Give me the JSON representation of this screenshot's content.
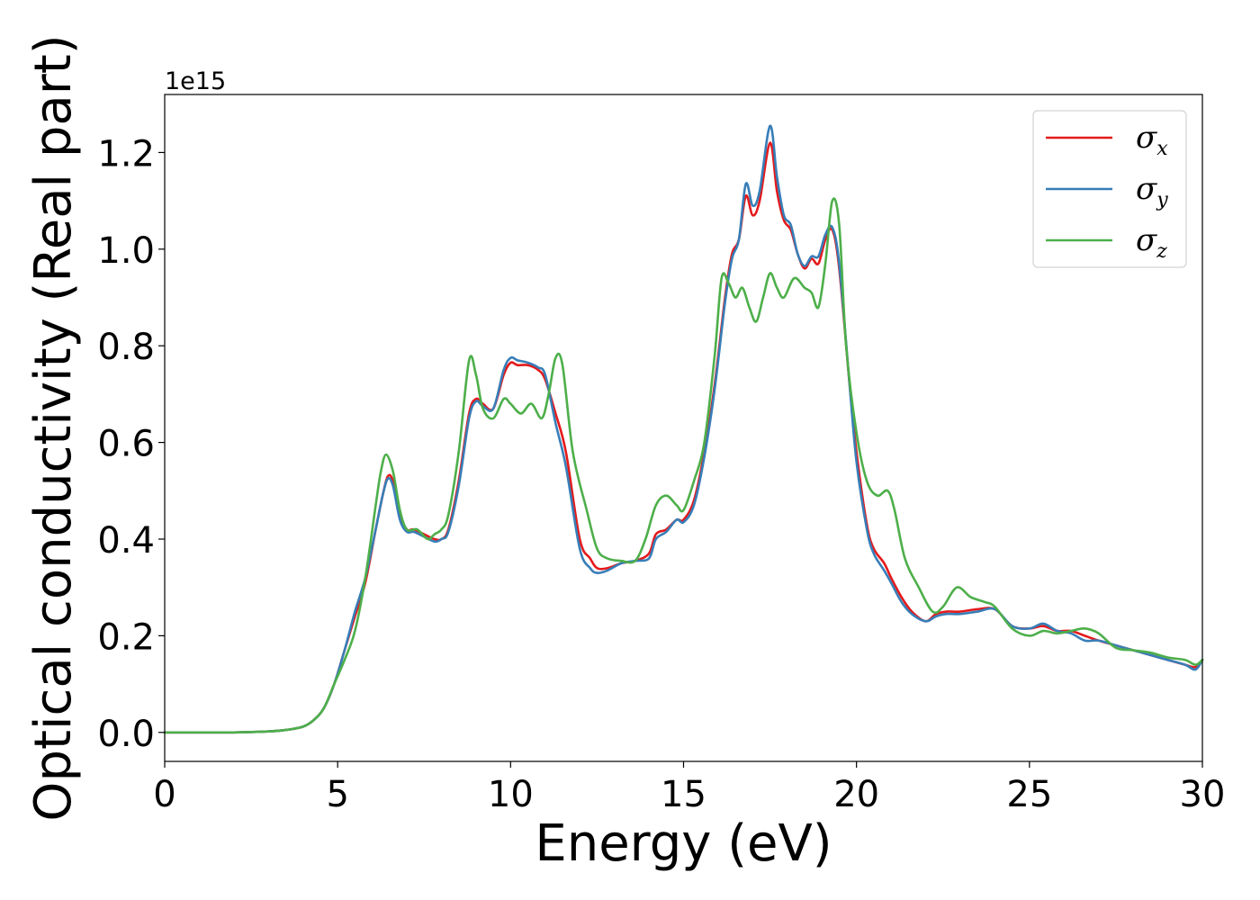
{
  "chart_data": {
    "type": "line",
    "title": "",
    "xlabel": "Energy (eV)",
    "ylabel": "Optical conductivity (Real part)",
    "y_offset_label": "1e15",
    "xlim": [
      0,
      30
    ],
    "ylim": [
      -0.06,
      1.32
    ],
    "xticks": [
      0,
      5,
      10,
      15,
      20,
      25,
      30
    ],
    "yticks": [
      0.0,
      0.2,
      0.4,
      0.6,
      0.8,
      1.0,
      1.2
    ],
    "xtick_labels": [
      "0",
      "5",
      "10",
      "15",
      "20",
      "25",
      "30"
    ],
    "ytick_labels": [
      "0.0",
      "0.2",
      "0.4",
      "0.6",
      "0.8",
      "1.0",
      "1.2"
    ],
    "grid": false,
    "legend_position": "top-right",
    "series": [
      {
        "name": "σx",
        "legend_symbol": "σ",
        "legend_subscript": "x",
        "color": "#e41a1c",
        "x": [
          0,
          1,
          2,
          3,
          3.5,
          4,
          4.3,
          4.6,
          4.9,
          5.2,
          5.5,
          5.8,
          6.1,
          6.3,
          6.45,
          6.6,
          6.8,
          7.0,
          7.2,
          7.5,
          7.8,
          8.0,
          8.2,
          8.5,
          8.8,
          9.0,
          9.2,
          9.5,
          9.8,
          10.0,
          10.2,
          10.5,
          10.8,
          11.0,
          11.3,
          11.6,
          12.0,
          12.3,
          12.5,
          12.8,
          13.2,
          13.6,
          14.0,
          14.2,
          14.5,
          14.8,
          15.0,
          15.3,
          15.6,
          15.9,
          16.2,
          16.4,
          16.6,
          16.8,
          17.0,
          17.2,
          17.5,
          17.7,
          17.9,
          18.1,
          18.3,
          18.5,
          18.7,
          18.9,
          19.1,
          19.3,
          19.5,
          19.8,
          20.0,
          20.3,
          20.5,
          20.8,
          21.0,
          21.3,
          21.6,
          22.0,
          22.3,
          22.6,
          23.0,
          23.5,
          24.0,
          24.5,
          25.0,
          25.4,
          25.8,
          26.2,
          26.6,
          27.0,
          27.5,
          28.0,
          28.5,
          29.0,
          29.5,
          29.8,
          30.0
        ],
        "y": [
          0.0,
          0.0,
          0.0,
          0.002,
          0.005,
          0.012,
          0.025,
          0.05,
          0.1,
          0.17,
          0.24,
          0.31,
          0.42,
          0.49,
          0.53,
          0.52,
          0.45,
          0.42,
          0.42,
          0.41,
          0.4,
          0.4,
          0.42,
          0.52,
          0.66,
          0.69,
          0.68,
          0.67,
          0.74,
          0.765,
          0.76,
          0.76,
          0.75,
          0.73,
          0.66,
          0.58,
          0.4,
          0.36,
          0.34,
          0.34,
          0.35,
          0.355,
          0.37,
          0.41,
          0.42,
          0.44,
          0.44,
          0.48,
          0.58,
          0.72,
          0.9,
          0.99,
          1.02,
          1.11,
          1.07,
          1.1,
          1.22,
          1.12,
          1.06,
          1.04,
          0.99,
          0.96,
          0.98,
          0.97,
          1.02,
          1.04,
          0.96,
          0.72,
          0.58,
          0.43,
          0.38,
          0.35,
          0.32,
          0.28,
          0.25,
          0.23,
          0.245,
          0.25,
          0.25,
          0.255,
          0.255,
          0.22,
          0.215,
          0.22,
          0.21,
          0.21,
          0.2,
          0.19,
          0.18,
          0.17,
          0.16,
          0.15,
          0.14,
          0.135,
          0.15
        ]
      },
      {
        "name": "σy",
        "legend_symbol": "σ",
        "legend_subscript": "y",
        "color": "#377eb8",
        "x": [
          0,
          1,
          2,
          3,
          3.5,
          4,
          4.3,
          4.6,
          4.9,
          5.2,
          5.5,
          5.8,
          6.1,
          6.3,
          6.45,
          6.6,
          6.8,
          7.0,
          7.2,
          7.5,
          7.8,
          8.0,
          8.2,
          8.5,
          8.8,
          9.0,
          9.2,
          9.5,
          9.8,
          10.0,
          10.2,
          10.5,
          10.8,
          11.0,
          11.3,
          11.6,
          12.0,
          12.3,
          12.5,
          12.8,
          13.2,
          13.6,
          14.0,
          14.2,
          14.5,
          14.8,
          15.0,
          15.3,
          15.6,
          15.9,
          16.2,
          16.4,
          16.6,
          16.8,
          17.0,
          17.2,
          17.5,
          17.7,
          17.9,
          18.1,
          18.3,
          18.5,
          18.7,
          18.9,
          19.1,
          19.3,
          19.5,
          19.8,
          20.0,
          20.3,
          20.5,
          20.8,
          21.0,
          21.3,
          21.6,
          22.0,
          22.3,
          22.6,
          23.0,
          23.5,
          24.0,
          24.5,
          25.0,
          25.4,
          25.8,
          26.2,
          26.6,
          27.0,
          27.5,
          28.0,
          28.5,
          29.0,
          29.5,
          29.8,
          30.0
        ],
        "y": [
          0.0,
          0.0,
          0.0,
          0.002,
          0.005,
          0.012,
          0.025,
          0.05,
          0.1,
          0.17,
          0.25,
          0.32,
          0.42,
          0.49,
          0.525,
          0.51,
          0.44,
          0.415,
          0.415,
          0.405,
          0.395,
          0.4,
          0.415,
          0.51,
          0.65,
          0.685,
          0.675,
          0.67,
          0.75,
          0.775,
          0.77,
          0.765,
          0.755,
          0.74,
          0.64,
          0.55,
          0.38,
          0.34,
          0.33,
          0.335,
          0.35,
          0.355,
          0.36,
          0.4,
          0.415,
          0.44,
          0.435,
          0.47,
          0.57,
          0.71,
          0.89,
          0.98,
          1.02,
          1.135,
          1.09,
          1.12,
          1.255,
          1.15,
          1.07,
          1.05,
          0.99,
          0.965,
          0.985,
          0.985,
          1.03,
          1.045,
          0.97,
          0.72,
          0.56,
          0.42,
          0.37,
          0.335,
          0.31,
          0.27,
          0.245,
          0.23,
          0.24,
          0.245,
          0.245,
          0.25,
          0.255,
          0.22,
          0.215,
          0.225,
          0.21,
          0.205,
          0.19,
          0.19,
          0.18,
          0.17,
          0.16,
          0.15,
          0.14,
          0.13,
          0.15
        ]
      },
      {
        "name": "σz",
        "legend_symbol": "σ",
        "legend_subscript": "z",
        "color": "#4daf4a",
        "x": [
          0,
          1,
          2,
          3,
          3.5,
          4,
          4.3,
          4.6,
          4.9,
          5.2,
          5.5,
          5.8,
          6.1,
          6.25,
          6.4,
          6.6,
          6.8,
          7.0,
          7.3,
          7.6,
          7.8,
          8.0,
          8.2,
          8.5,
          8.8,
          9.0,
          9.2,
          9.5,
          9.8,
          10.0,
          10.3,
          10.6,
          10.9,
          11.1,
          11.3,
          11.5,
          11.8,
          12.2,
          12.5,
          12.8,
          13.2,
          13.6,
          13.9,
          14.2,
          14.5,
          14.8,
          15.0,
          15.3,
          15.6,
          15.9,
          16.1,
          16.3,
          16.5,
          16.7,
          16.9,
          17.1,
          17.3,
          17.5,
          17.7,
          17.9,
          18.2,
          18.5,
          18.7,
          18.9,
          19.1,
          19.3,
          19.5,
          19.7,
          20.0,
          20.3,
          20.6,
          20.9,
          21.1,
          21.4,
          21.8,
          22.2,
          22.5,
          22.9,
          23.3,
          23.7,
          24.0,
          24.5,
          25.0,
          25.4,
          25.8,
          26.2,
          26.6,
          27.0,
          27.5,
          28.0,
          28.5,
          29.0,
          29.5,
          29.8,
          30.0
        ],
        "y": [
          0.0,
          0.0,
          0.0,
          0.002,
          0.005,
          0.012,
          0.025,
          0.05,
          0.1,
          0.15,
          0.21,
          0.32,
          0.47,
          0.54,
          0.575,
          0.54,
          0.46,
          0.42,
          0.42,
          0.4,
          0.41,
          0.42,
          0.45,
          0.58,
          0.77,
          0.74,
          0.67,
          0.65,
          0.69,
          0.68,
          0.66,
          0.68,
          0.65,
          0.7,
          0.775,
          0.76,
          0.58,
          0.46,
          0.38,
          0.36,
          0.355,
          0.355,
          0.4,
          0.47,
          0.49,
          0.47,
          0.46,
          0.52,
          0.6,
          0.78,
          0.94,
          0.93,
          0.9,
          0.92,
          0.88,
          0.85,
          0.9,
          0.95,
          0.92,
          0.9,
          0.94,
          0.92,
          0.91,
          0.88,
          0.97,
          1.1,
          1.05,
          0.8,
          0.62,
          0.52,
          0.49,
          0.5,
          0.46,
          0.36,
          0.3,
          0.25,
          0.26,
          0.3,
          0.28,
          0.27,
          0.26,
          0.215,
          0.2,
          0.21,
          0.205,
          0.21,
          0.215,
          0.205,
          0.175,
          0.17,
          0.165,
          0.155,
          0.15,
          0.14,
          0.15
        ]
      }
    ]
  }
}
